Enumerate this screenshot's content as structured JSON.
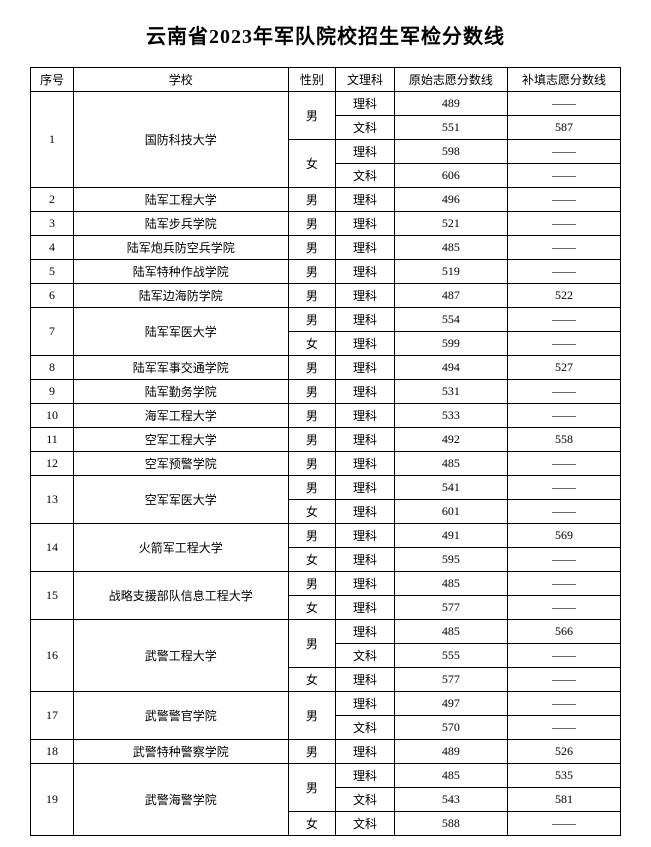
{
  "title": "云南省2023年军队院校招生军检分数线",
  "dash": "——",
  "headers": {
    "no": "序号",
    "school": "学校",
    "gender": "性别",
    "subject": "文理科",
    "score1": "原始志愿分数线",
    "score2": "补填志愿分数线"
  },
  "rows": [
    {
      "no": "1",
      "school": "国防科技大学",
      "sub": [
        {
          "gender": "男",
          "items": [
            {
              "subject": "理科",
              "s1": "489",
              "s2": "——"
            },
            {
              "subject": "文科",
              "s1": "551",
              "s2": "587"
            }
          ]
        },
        {
          "gender": "女",
          "items": [
            {
              "subject": "理科",
              "s1": "598",
              "s2": "——"
            },
            {
              "subject": "文科",
              "s1": "606",
              "s2": "——"
            }
          ]
        }
      ]
    },
    {
      "no": "2",
      "school": "陆军工程大学",
      "sub": [
        {
          "gender": "男",
          "items": [
            {
              "subject": "理科",
              "s1": "496",
              "s2": "——"
            }
          ]
        }
      ]
    },
    {
      "no": "3",
      "school": "陆军步兵学院",
      "sub": [
        {
          "gender": "男",
          "items": [
            {
              "subject": "理科",
              "s1": "521",
              "s2": "——"
            }
          ]
        }
      ]
    },
    {
      "no": "4",
      "school": "陆军炮兵防空兵学院",
      "sub": [
        {
          "gender": "男",
          "items": [
            {
              "subject": "理科",
              "s1": "485",
              "s2": "——"
            }
          ]
        }
      ]
    },
    {
      "no": "5",
      "school": "陆军特种作战学院",
      "sub": [
        {
          "gender": "男",
          "items": [
            {
              "subject": "理科",
              "s1": "519",
              "s2": "——"
            }
          ]
        }
      ]
    },
    {
      "no": "6",
      "school": "陆军边海防学院",
      "sub": [
        {
          "gender": "男",
          "items": [
            {
              "subject": "理科",
              "s1": "487",
              "s2": "522"
            }
          ]
        }
      ]
    },
    {
      "no": "7",
      "school": "陆军军医大学",
      "sub": [
        {
          "gender": "男",
          "items": [
            {
              "subject": "理科",
              "s1": "554",
              "s2": "——"
            }
          ]
        },
        {
          "gender": "女",
          "items": [
            {
              "subject": "理科",
              "s1": "599",
              "s2": "——"
            }
          ]
        }
      ]
    },
    {
      "no": "8",
      "school": "陆军军事交通学院",
      "sub": [
        {
          "gender": "男",
          "items": [
            {
              "subject": "理科",
              "s1": "494",
              "s2": "527"
            }
          ]
        }
      ]
    },
    {
      "no": "9",
      "school": "陆军勤务学院",
      "sub": [
        {
          "gender": "男",
          "items": [
            {
              "subject": "理科",
              "s1": "531",
              "s2": "——"
            }
          ]
        }
      ]
    },
    {
      "no": "10",
      "school": "海军工程大学",
      "sub": [
        {
          "gender": "男",
          "items": [
            {
              "subject": "理科",
              "s1": "533",
              "s2": "——"
            }
          ]
        }
      ]
    },
    {
      "no": "11",
      "school": "空军工程大学",
      "sub": [
        {
          "gender": "男",
          "items": [
            {
              "subject": "理科",
              "s1": "492",
              "s2": "558"
            }
          ]
        }
      ]
    },
    {
      "no": "12",
      "school": "空军预警学院",
      "sub": [
        {
          "gender": "男",
          "items": [
            {
              "subject": "理科",
              "s1": "485",
              "s2": "——"
            }
          ]
        }
      ]
    },
    {
      "no": "13",
      "school": "空军军医大学",
      "sub": [
        {
          "gender": "男",
          "items": [
            {
              "subject": "理科",
              "s1": "541",
              "s2": "——"
            }
          ]
        },
        {
          "gender": "女",
          "items": [
            {
              "subject": "理科",
              "s1": "601",
              "s2": "——"
            }
          ]
        }
      ]
    },
    {
      "no": "14",
      "school": "火箭军工程大学",
      "sub": [
        {
          "gender": "男",
          "items": [
            {
              "subject": "理科",
              "s1": "491",
              "s2": "569"
            }
          ]
        },
        {
          "gender": "女",
          "items": [
            {
              "subject": "理科",
              "s1": "595",
              "s2": "——"
            }
          ]
        }
      ]
    },
    {
      "no": "15",
      "school": "战略支援部队信息工程大学",
      "sub": [
        {
          "gender": "男",
          "items": [
            {
              "subject": "理科",
              "s1": "485",
              "s2": "——"
            }
          ]
        },
        {
          "gender": "女",
          "items": [
            {
              "subject": "理科",
              "s1": "577",
              "s2": "——"
            }
          ]
        }
      ]
    },
    {
      "no": "16",
      "school": "武警工程大学",
      "sub": [
        {
          "gender": "男",
          "items": [
            {
              "subject": "理科",
              "s1": "485",
              "s2": "566"
            },
            {
              "subject": "文科",
              "s1": "555",
              "s2": "——"
            }
          ]
        },
        {
          "gender": "女",
          "items": [
            {
              "subject": "理科",
              "s1": "577",
              "s2": "——"
            }
          ]
        }
      ]
    },
    {
      "no": "17",
      "school": "武警警官学院",
      "sub": [
        {
          "gender": "男",
          "items": [
            {
              "subject": "理科",
              "s1": "497",
              "s2": "——"
            },
            {
              "subject": "文科",
              "s1": "570",
              "s2": "——"
            }
          ]
        }
      ]
    },
    {
      "no": "18",
      "school": "武警特种警察学院",
      "sub": [
        {
          "gender": "男",
          "items": [
            {
              "subject": "理科",
              "s1": "489",
              "s2": "526"
            }
          ]
        }
      ]
    },
    {
      "no": "19",
      "school": "武警海警学院",
      "sub": [
        {
          "gender": "男",
          "items": [
            {
              "subject": "理科",
              "s1": "485",
              "s2": "535"
            },
            {
              "subject": "文科",
              "s1": "543",
              "s2": "581"
            }
          ]
        },
        {
          "gender": "女",
          "items": [
            {
              "subject": "文科",
              "s1": "588",
              "s2": "——"
            }
          ]
        }
      ]
    }
  ]
}
